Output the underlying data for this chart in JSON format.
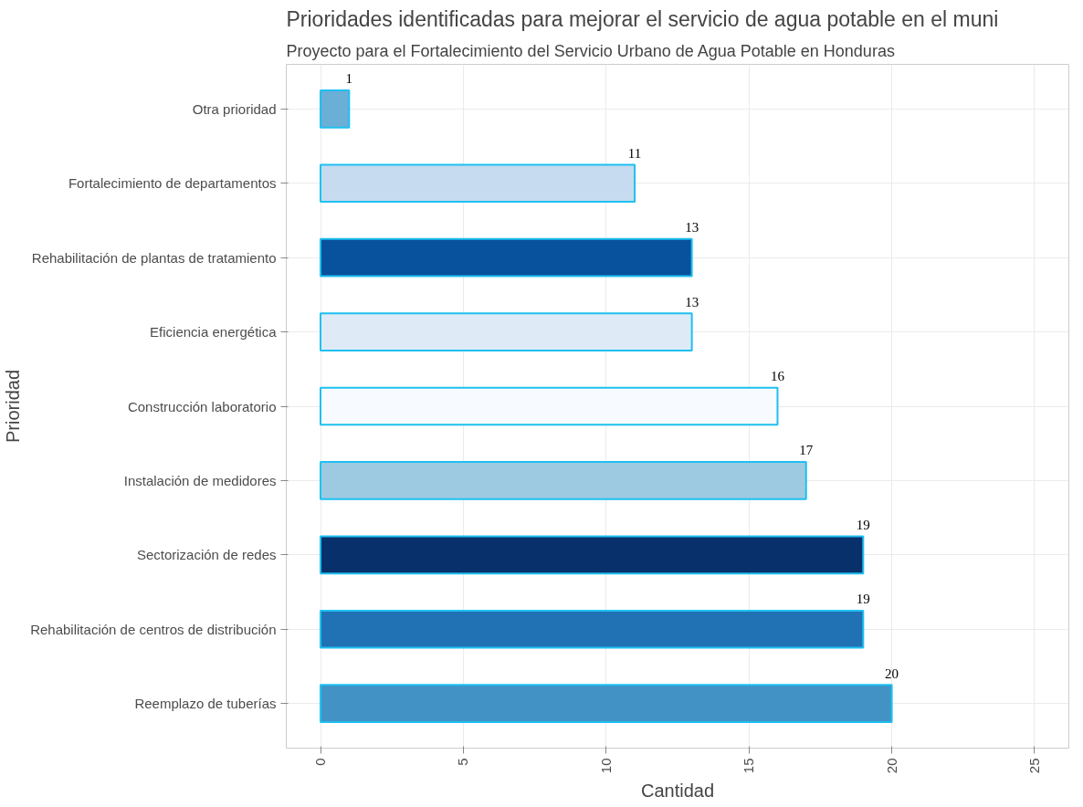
{
  "chart_data": {
    "type": "bar",
    "orientation": "horizontal",
    "title": "Prioridades identificadas para mejorar el servicio de agua potable en el muni",
    "subtitle": "Proyecto para el Fortalecimiento del Servicio Urbano de Agua Potable en Honduras",
    "xlabel": "Cantidad",
    "ylabel": "Prioridad",
    "categories": [
      "Otra prioridad",
      "Fortalecimiento de departamentos",
      "Rehabilitación de plantas de tratamiento",
      "Eficiencia energética",
      "Construcción laboratorio",
      "Instalación de medidores",
      "Sectorización de redes",
      "Rehabilitación de centros de distribución",
      "Reemplazo de tuberías"
    ],
    "values": [
      1,
      11,
      13,
      13,
      16,
      17,
      19,
      19,
      20
    ],
    "colors": [
      "#6baed6",
      "#c6dbef",
      "#08519c",
      "#deebf7",
      "#f7fbff",
      "#9ecae1",
      "#08306b",
      "#2171b5",
      "#4292c6"
    ],
    "data_labels": true,
    "xlim": [
      -1.2,
      26.2
    ],
    "xticks": [
      0,
      5,
      10,
      15,
      20,
      25
    ],
    "grid": true
  }
}
